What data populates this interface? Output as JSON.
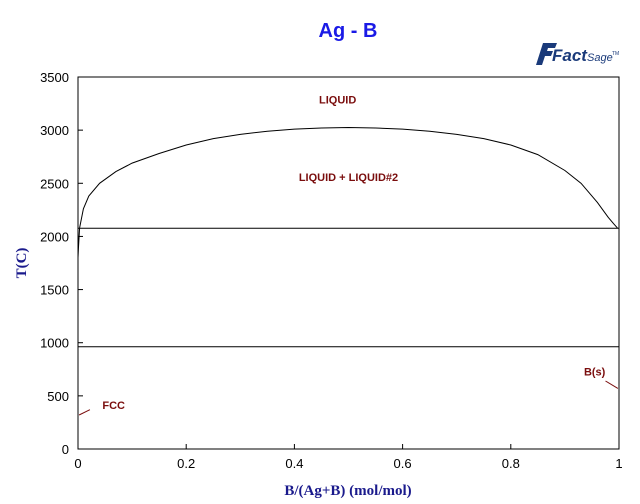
{
  "title": "Ag - B",
  "logo": {
    "main": "Fact",
    "sub": "Sage",
    "tm": "TM"
  },
  "colors": {
    "title": "#1a1ae6",
    "axis_label": "#1a1a8c",
    "phase_label": "#7a0d0d",
    "line": "#000000"
  },
  "chart_data": {
    "type": "line",
    "title": "Ag - B",
    "xlabel": "B/(Ag+B) (mol/mol)",
    "ylabel": "T(C)",
    "xlim": [
      0,
      1
    ],
    "ylim": [
      0,
      3500
    ],
    "x_ticks": [
      {
        "v": 0,
        "label": "0"
      },
      {
        "v": 0.2,
        "label": "0.2"
      },
      {
        "v": 0.4,
        "label": "0.4"
      },
      {
        "v": 0.6,
        "label": "0.6"
      },
      {
        "v": 0.8,
        "label": "0.8"
      },
      {
        "v": 1,
        "label": "1"
      }
    ],
    "y_ticks": [
      {
        "v": 0,
        "label": "0"
      },
      {
        "v": 500,
        "label": "500"
      },
      {
        "v": 1000,
        "label": "1000"
      },
      {
        "v": 1500,
        "label": "1500"
      },
      {
        "v": 2000,
        "label": "2000"
      },
      {
        "v": 2500,
        "label": "2500"
      },
      {
        "v": 3000,
        "label": "3000"
      },
      {
        "v": 3500,
        "label": "3500"
      }
    ],
    "series": [
      {
        "kind": "miscibility-gap",
        "x": [
          0.003,
          0.01,
          0.02,
          0.04,
          0.07,
          0.1,
          0.15,
          0.2,
          0.25,
          0.3,
          0.35,
          0.4,
          0.45,
          0.5,
          0.55,
          0.6,
          0.65,
          0.7,
          0.75,
          0.8,
          0.85,
          0.9,
          0.93,
          0.96,
          0.98,
          0.99,
          0.997
        ],
        "y": [
          2080,
          2260,
          2380,
          2500,
          2610,
          2690,
          2780,
          2860,
          2920,
          2960,
          2990,
          3010,
          3020,
          3025,
          3020,
          3010,
          2990,
          2960,
          2920,
          2860,
          2770,
          2620,
          2500,
          2320,
          2180,
          2120,
          2080
        ]
      },
      {
        "kind": "Ag-rich liquidus",
        "x": [
          0,
          0.001,
          0.002,
          0.003
        ],
        "y": [
          1800,
          1900,
          2000,
          2080
        ]
      },
      {
        "kind": "monotectic isotherm",
        "x": [
          0,
          1
        ],
        "y": [
          2077,
          2077
        ]
      },
      {
        "kind": "eutectic isotherm",
        "x": [
          0,
          1
        ],
        "y": [
          962,
          962
        ]
      }
    ],
    "labels": [
      {
        "text": "LIQUID",
        "x": 0.48,
        "y": 3250
      },
      {
        "text": "LIQUID + LIQUID#2",
        "x": 0.5,
        "y": 2520
      },
      {
        "text": "FCC",
        "x": 0.045,
        "y": 375,
        "leader": [
          [
            0.002,
            320
          ],
          [
            0.022,
            370
          ]
        ]
      },
      {
        "text": "B(s)",
        "x": 0.955,
        "y": 690,
        "leader": [
          [
            0.975,
            640
          ],
          [
            0.998,
            570
          ]
        ]
      }
    ]
  }
}
